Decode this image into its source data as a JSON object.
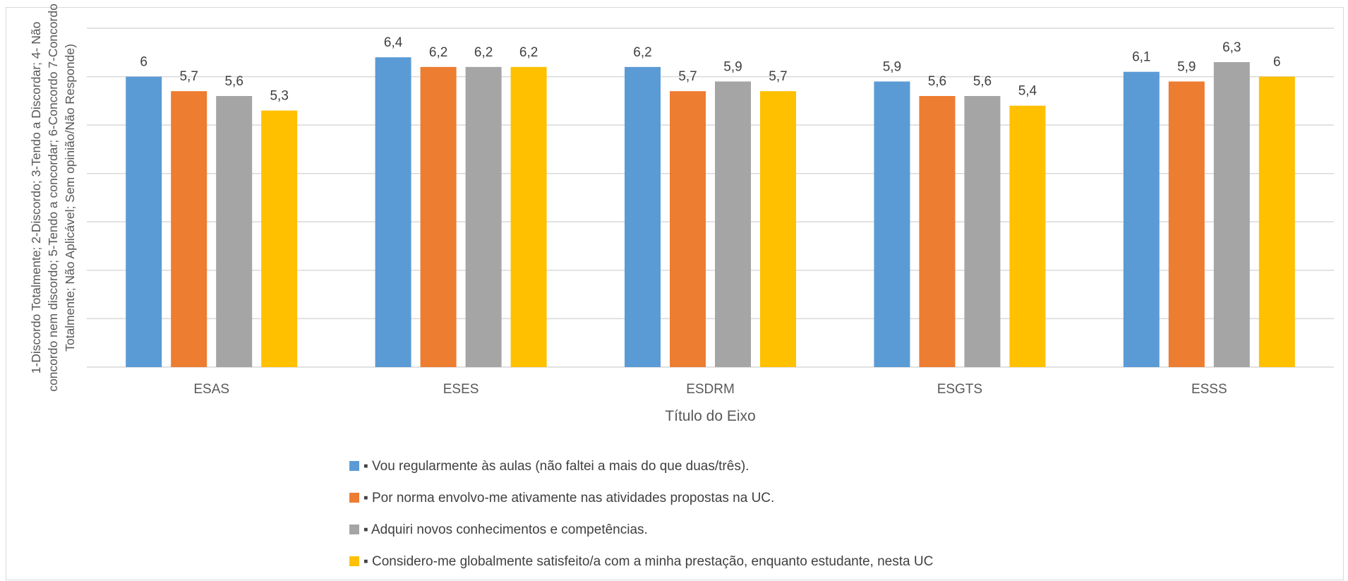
{
  "chart_data": {
    "type": "bar",
    "categories": [
      "ESAS",
      "ESES",
      "ESDRM",
      "ESGTS",
      "ESSS"
    ],
    "series": [
      {
        "name": "▪ Vou regularmente às aulas (não faltei a mais do que duas/três).",
        "values": [
          6,
          6.4,
          6.2,
          5.9,
          6.1
        ],
        "color": "#5b9bd5"
      },
      {
        "name": "▪ Por norma envolvo-me ativamente nas atividades propostas na UC.",
        "values": [
          5.7,
          6.2,
          5.7,
          5.6,
          5.9
        ],
        "color": "#ed7d31"
      },
      {
        "name": "▪ Adquiri novos conhecimentos e competências.",
        "values": [
          5.6,
          6.2,
          5.9,
          5.6,
          6.3
        ],
        "color": "#a5a5a5"
      },
      {
        "name": "▪ Considero-me globalmente satisfeito/a com a minha prestação, enquanto estudante, nesta UC",
        "values": [
          5.3,
          6.2,
          5.7,
          5.4,
          6
        ],
        "color": "#ffc000"
      }
    ],
    "data_labels": [
      [
        "6",
        "6,4",
        "6,2",
        "5,9",
        "6,1"
      ],
      [
        "5,7",
        "6,2",
        "5,7",
        "5,6",
        "5,9"
      ],
      [
        "5,6",
        "6,2",
        "5,9",
        "5,6",
        "6,3"
      ],
      [
        "5,3",
        "6,2",
        "5,7",
        "5,4",
        "6"
      ]
    ],
    "xlabel": "Título do Eixo",
    "ylabel": [
      "1-Discordo Totalmente; 2-Discordo; 3-Tendo a Discordar; 4- Não",
      "concordo nem discordo; 5-Tendo a concordar; 6-Concordo 7-Concordo",
      "Totalmente; Não Aplicável; Sem opinião/Não Responde)"
    ],
    "ylim": [
      0,
      7
    ],
    "gridlines": true,
    "legend_position": "bottom"
  }
}
